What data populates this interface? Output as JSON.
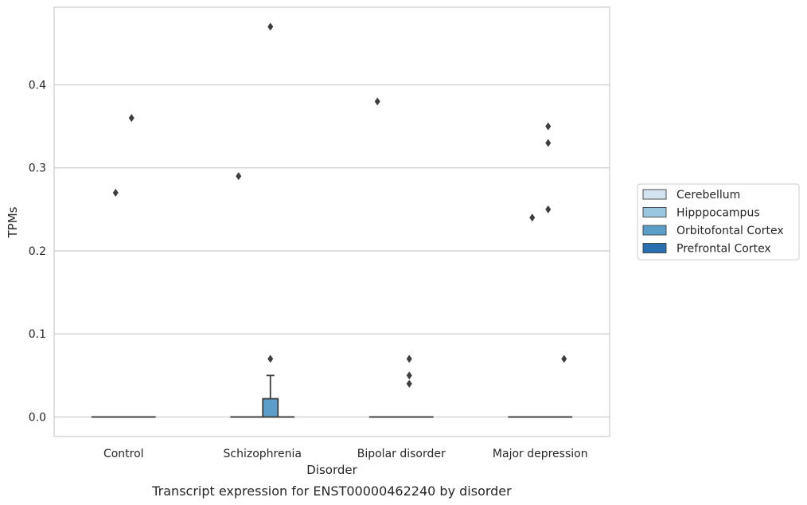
{
  "chart_data": {
    "type": "box",
    "categories": [
      "Control",
      "Schizophrenia",
      "Bipolar disorder",
      "Major depression"
    ],
    "series": [
      {
        "name": "Cerebellum",
        "color": "#d3e3f2"
      },
      {
        "name": "Hipppocampus",
        "color": "#9ac7e0"
      },
      {
        "name": "Orbitofontal Cortex",
        "color": "#5a9ec9"
      },
      {
        "name": "Prefrontal Cortex",
        "color": "#2c6fb0"
      }
    ],
    "boxes": [
      {
        "category": 0,
        "series": 0,
        "q1": 0,
        "median": 0,
        "q3": 0,
        "whisker_low": 0,
        "whisker_high": 0,
        "outliers": []
      },
      {
        "category": 0,
        "series": 1,
        "q1": 0,
        "median": 0,
        "q3": 0,
        "whisker_low": 0,
        "whisker_high": 0,
        "outliers": [
          0.27
        ]
      },
      {
        "category": 0,
        "series": 2,
        "q1": 0,
        "median": 0,
        "q3": 0,
        "whisker_low": 0,
        "whisker_high": 0,
        "outliers": [
          0.36
        ]
      },
      {
        "category": 0,
        "series": 3,
        "q1": 0,
        "median": 0,
        "q3": 0,
        "whisker_low": 0,
        "whisker_high": 0,
        "outliers": []
      },
      {
        "category": 1,
        "series": 0,
        "q1": 0,
        "median": 0,
        "q3": 0,
        "whisker_low": 0,
        "whisker_high": 0,
        "outliers": [
          0.29
        ]
      },
      {
        "category": 1,
        "series": 1,
        "q1": 0,
        "median": 0,
        "q3": 0,
        "whisker_low": 0,
        "whisker_high": 0,
        "outliers": []
      },
      {
        "category": 1,
        "series": 2,
        "q1": 0,
        "median": 0,
        "q3": 0.022,
        "whisker_low": 0,
        "whisker_high": 0.05,
        "outliers": [
          0.07,
          0.47
        ]
      },
      {
        "category": 1,
        "series": 3,
        "q1": 0,
        "median": 0,
        "q3": 0,
        "whisker_low": 0,
        "whisker_high": 0,
        "outliers": []
      },
      {
        "category": 2,
        "series": 0,
        "q1": 0,
        "median": 0,
        "q3": 0,
        "whisker_low": 0,
        "whisker_high": 0,
        "outliers": [
          0.38
        ]
      },
      {
        "category": 2,
        "series": 1,
        "q1": 0,
        "median": 0,
        "q3": 0,
        "whisker_low": 0,
        "whisker_high": 0,
        "outliers": []
      },
      {
        "category": 2,
        "series": 2,
        "q1": 0,
        "median": 0,
        "q3": 0,
        "whisker_low": 0,
        "whisker_high": 0,
        "outliers": [
          0.04,
          0.05,
          0.07
        ]
      },
      {
        "category": 2,
        "series": 3,
        "q1": 0,
        "median": 0,
        "q3": 0,
        "whisker_low": 0,
        "whisker_high": 0,
        "outliers": []
      },
      {
        "category": 3,
        "series": 0,
        "q1": 0,
        "median": 0,
        "q3": 0,
        "whisker_low": 0,
        "whisker_high": 0,
        "outliers": []
      },
      {
        "category": 3,
        "series": 1,
        "q1": 0,
        "median": 0,
        "q3": 0,
        "whisker_low": 0,
        "whisker_high": 0,
        "outliers": [
          0.24
        ]
      },
      {
        "category": 3,
        "series": 2,
        "q1": 0,
        "median": 0,
        "q3": 0,
        "whisker_low": 0,
        "whisker_high": 0,
        "outliers": [
          0.25,
          0.33,
          0.35
        ]
      },
      {
        "category": 3,
        "series": 3,
        "q1": 0,
        "median": 0,
        "q3": 0,
        "whisker_low": 0,
        "whisker_high": 0,
        "outliers": [
          0.07
        ]
      }
    ],
    "xlabel": "Disorder",
    "ylabel": "TPMs",
    "caption": "Transcript expression for ENST00000462240 by disorder",
    "yticks": [
      0.0,
      0.1,
      0.2,
      0.3,
      0.4
    ],
    "ytick_labels": [
      "0.0",
      "0.1",
      "0.2",
      "0.3",
      "0.4"
    ],
    "ylim": [
      -0.0235,
      0.4935
    ],
    "grid": "horizontal",
    "legend_position": "right"
  }
}
